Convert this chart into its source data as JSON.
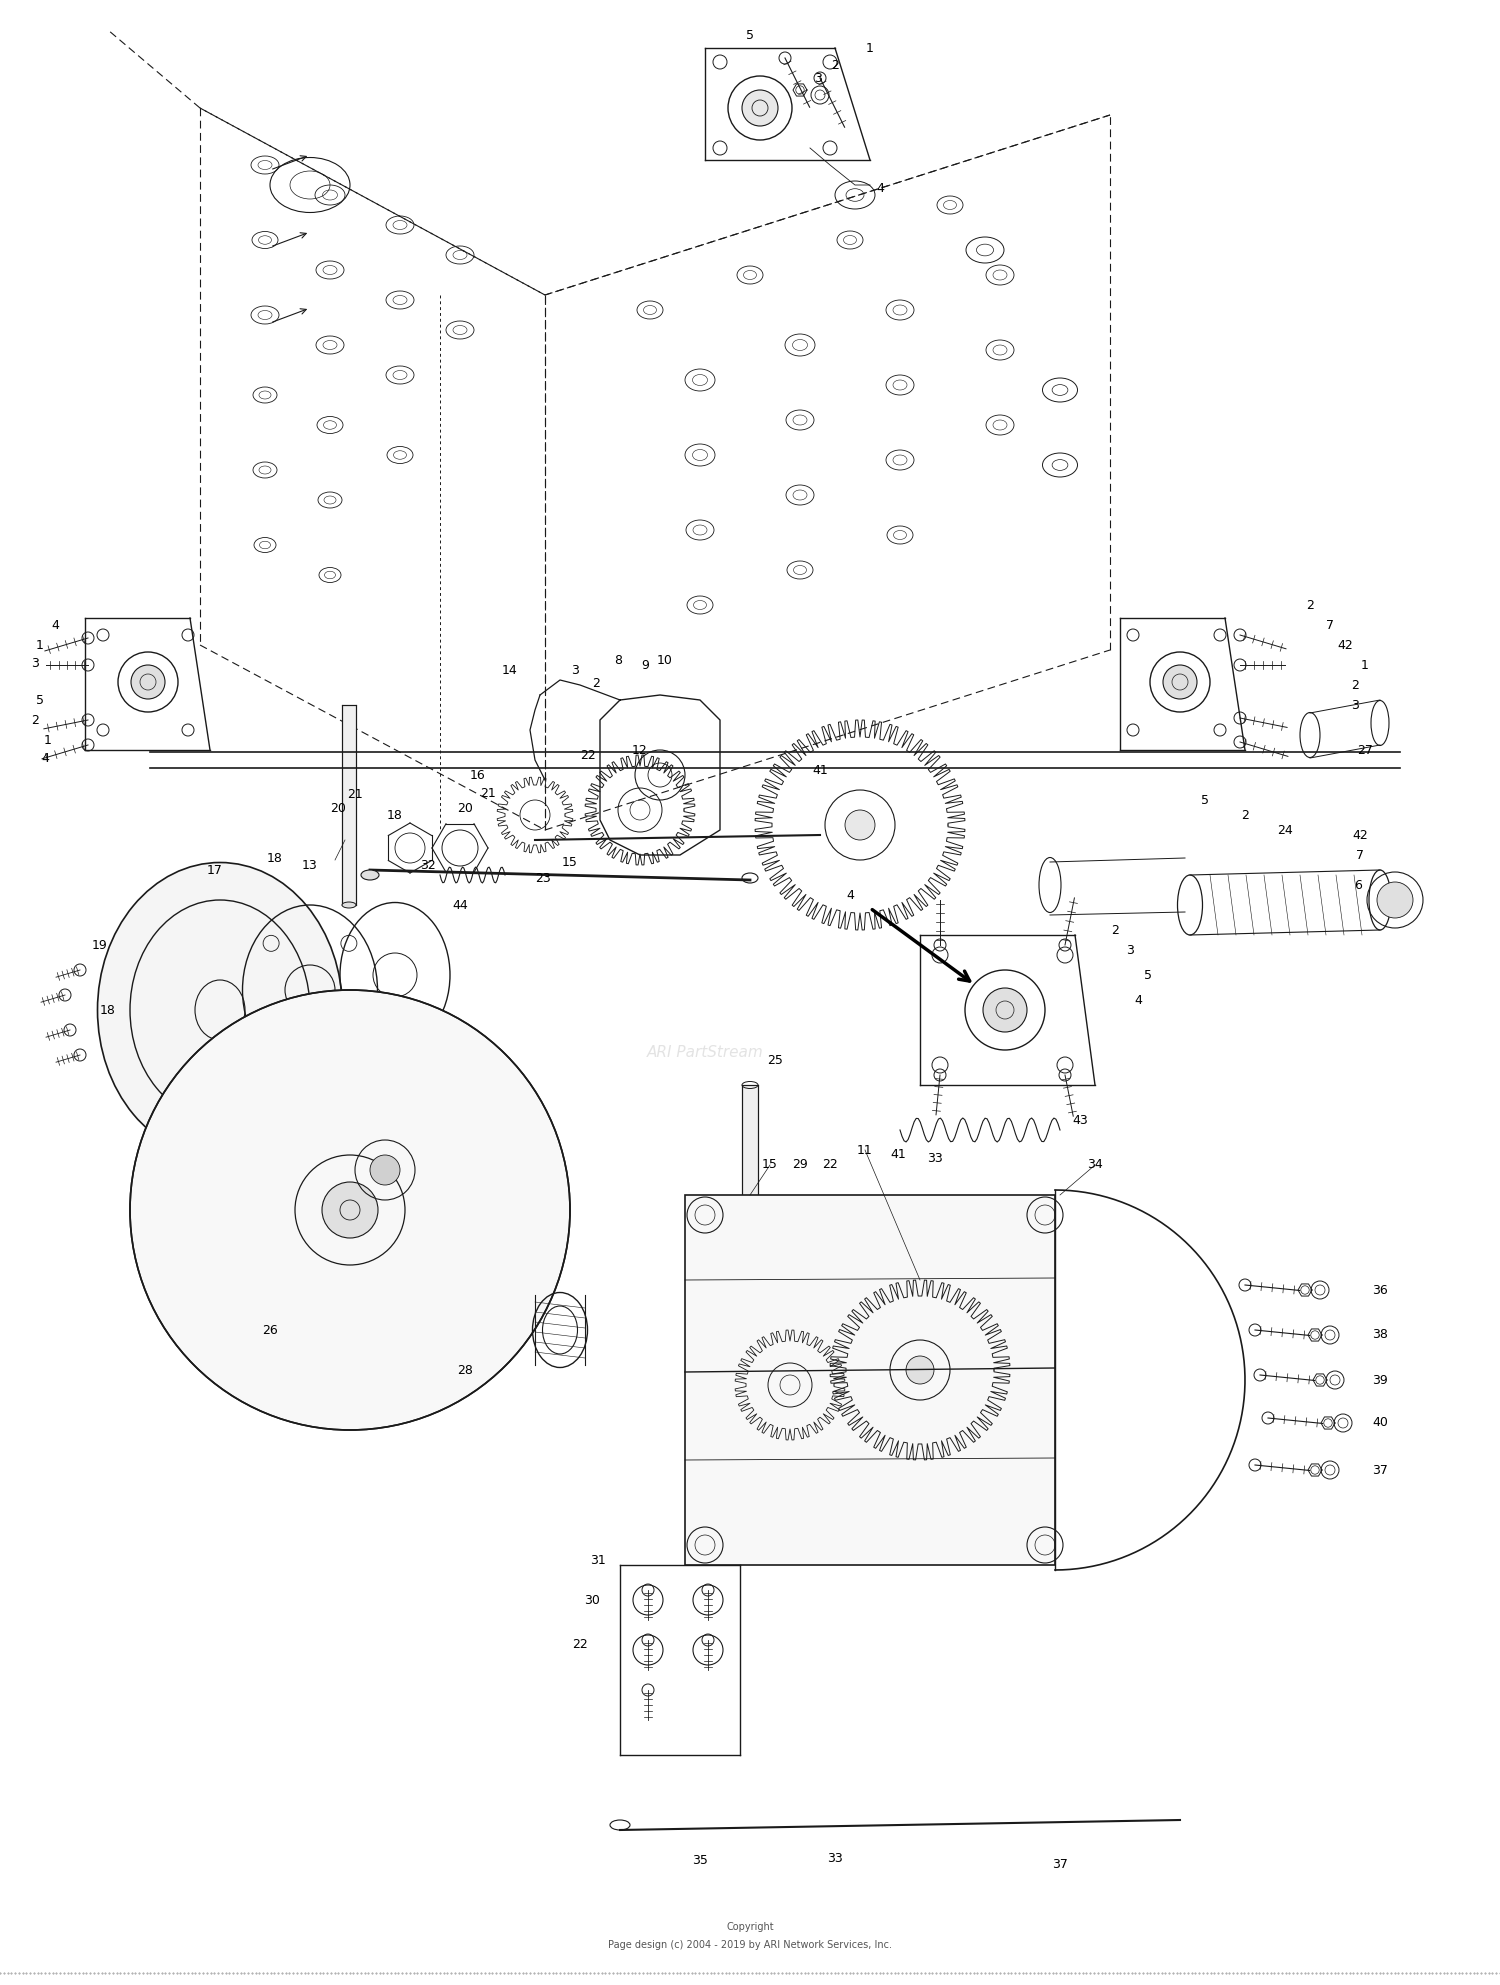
{
  "background_color": "#ffffff",
  "copyright_line1": "Copyright",
  "copyright_line2": "Page design (c) 2004 - 2019 by ARI Network Services, Inc.",
  "watermark": "ARI PartStream",
  "fig_width": 15.0,
  "fig_height": 19.85,
  "dpi": 100,
  "line_color": "#1a1a1a",
  "dash_color": "#1a1a1a"
}
